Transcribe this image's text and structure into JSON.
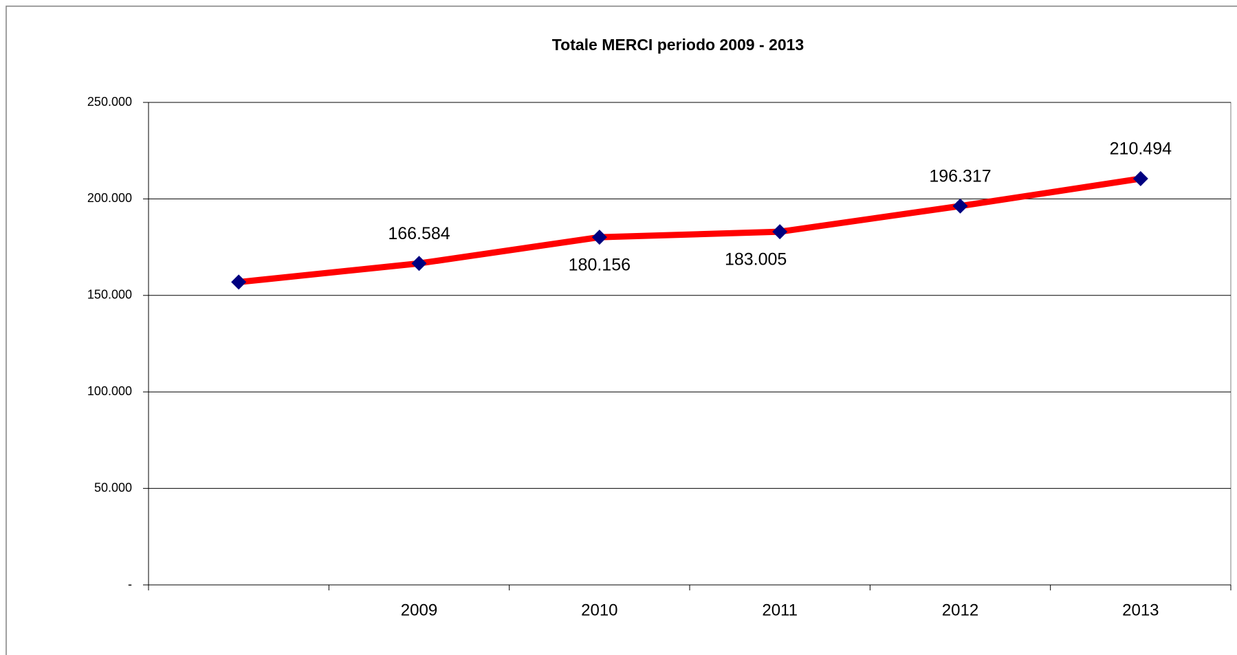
{
  "chart_data": {
    "type": "line",
    "title": "Totale MERCI periodo 2009 - 2013",
    "categories": [
      null,
      "2009",
      "2010",
      "2011",
      "2012",
      "2013"
    ],
    "series": [
      {
        "name": "Totale MERCI",
        "color": "#ff0000",
        "marker_color": "#000080",
        "values": [
          156900,
          166584,
          180156,
          183005,
          196317,
          210494
        ],
        "value_labels": [
          null,
          "166.584",
          "180.156",
          "183.005",
          "196.317",
          "210.494"
        ]
      }
    ],
    "ylim": [
      0,
      250000
    ],
    "yticks": [
      {
        "value": 0,
        "label": "-"
      },
      {
        "value": 50000,
        "label": "50.000"
      },
      {
        "value": 100000,
        "label": "100.000"
      },
      {
        "value": 150000,
        "label": "150.000"
      },
      {
        "value": 200000,
        "label": "200.000"
      },
      {
        "value": 250000,
        "label": "250.000"
      }
    ],
    "grid": true,
    "legend": false
  }
}
